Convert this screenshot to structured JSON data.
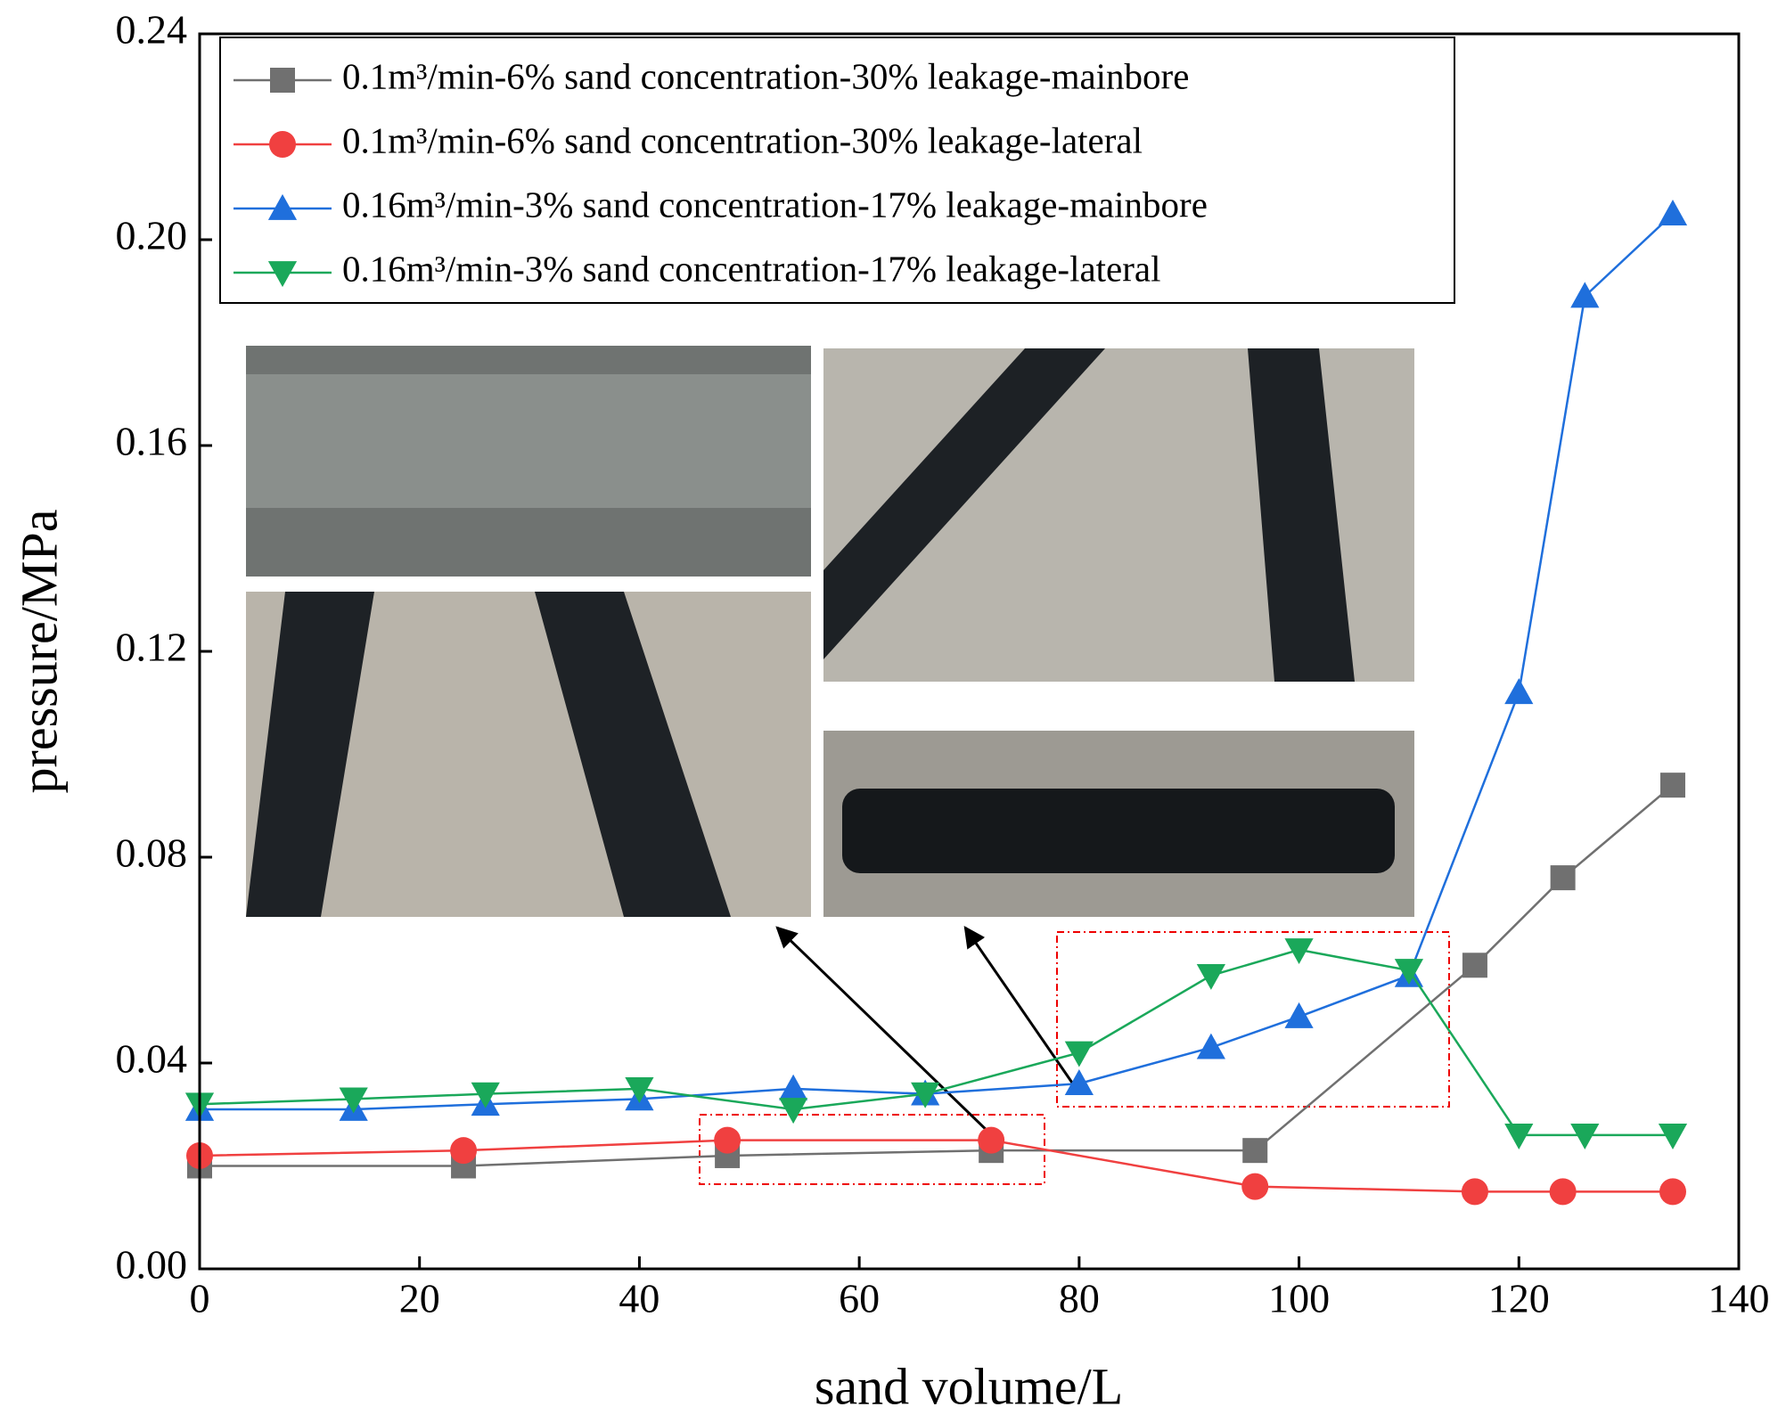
{
  "chart_data": {
    "type": "line",
    "x_label": "sand volume/L",
    "y_label": "pressure/MPa",
    "xlim": [
      0,
      140
    ],
    "xticks": [
      0,
      20,
      40,
      60,
      80,
      100,
      120,
      140
    ],
    "ylim": [
      0,
      0.24
    ],
    "yticks": [
      {
        "value": 0,
        "label": "0.00"
      },
      {
        "value": 0.04,
        "label": "0.04"
      },
      {
        "value": 0.08,
        "label": "0.08"
      },
      {
        "value": 0.12,
        "label": "0.12"
      },
      {
        "value": 0.16,
        "label": "0.16"
      },
      {
        "value": 0.2,
        "label": "0.20"
      },
      {
        "value": 0.24,
        "label": "0.24"
      }
    ],
    "legend": "upper left",
    "series": [
      {
        "name": "0.1m³/min-6% sand concentration-30% leakage-mainbore",
        "color": "#707070",
        "marker": "square",
        "x": [
          0,
          24,
          48,
          72,
          96,
          116,
          124,
          134
        ],
        "values": [
          0.02,
          0.02,
          0.022,
          0.023,
          0.023,
          0.059,
          0.076,
          0.094
        ]
      },
      {
        "name": "0.1m³/min-6% sand concentration-30% leakage-lateral",
        "color": "#f04040",
        "marker": "circle",
        "x": [
          0,
          24,
          48,
          72,
          96,
          116,
          124,
          134
        ],
        "values": [
          0.022,
          0.023,
          0.025,
          0.025,
          0.016,
          0.015,
          0.015,
          0.015
        ]
      },
      {
        "name": "0.16m³/min-3% sand concentration-17% leakage-mainbore",
        "color": "#1f6fdc",
        "marker": "triangle-up",
        "x": [
          0,
          14,
          26,
          40,
          54,
          66,
          80,
          92,
          100,
          110,
          120,
          126,
          134
        ],
        "values": [
          0.031,
          0.031,
          0.032,
          0.033,
          0.035,
          0.034,
          0.036,
          0.043,
          0.049,
          0.057,
          0.112,
          0.189,
          0.205
        ]
      },
      {
        "name": "0.16m³/min-3% sand concentration-17% leakage-lateral",
        "color": "#1aa85a",
        "marker": "triangle-down",
        "x": [
          0,
          14,
          26,
          40,
          54,
          66,
          80,
          92,
          100,
          110,
          120,
          126,
          134
        ],
        "values": [
          0.032,
          0.033,
          0.034,
          0.035,
          0.031,
          0.034,
          0.042,
          0.057,
          0.062,
          0.058,
          0.026,
          0.026,
          0.026
        ]
      }
    ]
  }
}
